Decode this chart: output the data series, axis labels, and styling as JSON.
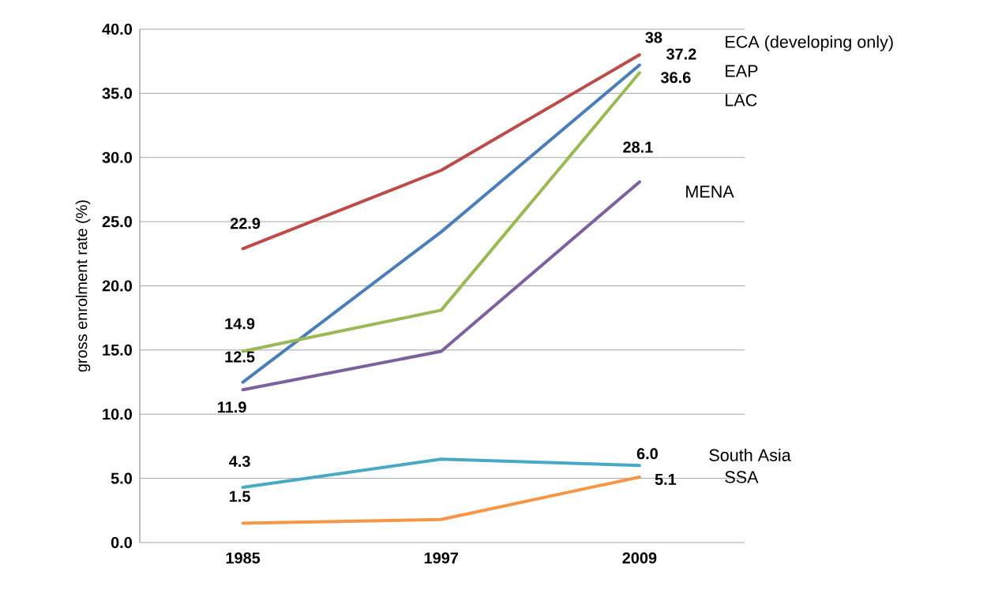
{
  "chart_data": {
    "type": "line",
    "ylabel": "gross enrolment rate (%)",
    "categories": [
      "1985",
      "1997",
      "2009"
    ],
    "ylim": [
      0,
      40
    ],
    "yticks": [
      {
        "value": 0,
        "label": "0.0"
      },
      {
        "value": 5,
        "label": "5.0"
      },
      {
        "value": 10,
        "label": "10.0"
      },
      {
        "value": 15,
        "label": "15.0"
      },
      {
        "value": 20,
        "label": "20.0"
      },
      {
        "value": 25,
        "label": "25.0"
      },
      {
        "value": 30,
        "label": "30.0"
      },
      {
        "value": 35,
        "label": "35.0"
      },
      {
        "value": 40,
        "label": "40.0"
      }
    ],
    "grid": "y",
    "legend": false,
    "marker": "none",
    "line_style": "solid",
    "series": [
      {
        "name": "ECA (developing only)",
        "color": "#be4b48",
        "values": [
          22.9,
          29.0,
          38
        ],
        "value_labels": [
          "22.9",
          null,
          "38"
        ]
      },
      {
        "name": "EAP",
        "color": "#4a7ebb",
        "values": [
          12.5,
          24.2,
          37.2
        ],
        "value_labels": [
          "12.5",
          null,
          "37.2"
        ]
      },
      {
        "name": "LAC",
        "color": "#98b954",
        "values": [
          14.9,
          18.1,
          36.6
        ],
        "value_labels": [
          "14.9",
          null,
          "36.6"
        ]
      },
      {
        "name": "MENA",
        "color": "#7d60a0",
        "values": [
          11.9,
          14.9,
          28.1
        ],
        "value_labels": [
          "11.9",
          null,
          "28.1"
        ]
      },
      {
        "name": "South Asia",
        "color": "#46aac5",
        "values": [
          4.3,
          6.5,
          6.0
        ],
        "value_labels": [
          "4.3",
          null,
          "6.0"
        ]
      },
      {
        "name": "SSA",
        "color": "#f79646",
        "values": [
          1.5,
          1.8,
          5.1
        ],
        "value_labels": [
          "1.5",
          null,
          "5.1"
        ]
      }
    ]
  }
}
